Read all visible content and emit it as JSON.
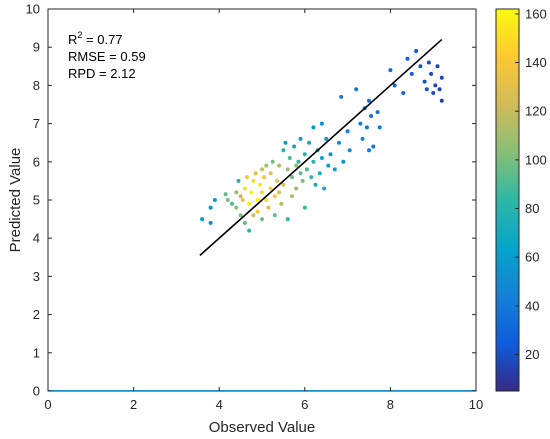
{
  "chart_data": {
    "type": "scatter",
    "xlabel": "Observed Value",
    "ylabel": "Predicted Value",
    "xlim": [
      0,
      10
    ],
    "ylim": [
      0,
      10
    ],
    "x_ticks": [
      "0",
      "2",
      "4",
      "6",
      "8",
      "10"
    ],
    "y_ticks": [
      "0",
      "1",
      "2",
      "3",
      "4",
      "5",
      "6",
      "7",
      "8",
      "9",
      "10"
    ],
    "grid": false,
    "annotations": {
      "r2_label": "R",
      "r2_sup": "2",
      "r2_value": " = 0.77",
      "rmse": "RMSE = 0.59",
      "rpd": "RPD = 2.12"
    },
    "fit_line": {
      "x": [
        3.55,
        9.2
      ],
      "y": [
        3.55,
        9.2
      ],
      "color": "#000000"
    },
    "colorbar": {
      "range": [
        5,
        162
      ],
      "ticks": [
        "20",
        "40",
        "60",
        "80",
        "100",
        "120",
        "140",
        "160"
      ],
      "colormap": "parula",
      "stops": [
        "#352a87",
        "#0f5cdd",
        "#1481d6",
        "#06a4ca",
        "#2eb7a4",
        "#87bf77",
        "#d1bb59",
        "#fec832",
        "#f9fb0e"
      ]
    },
    "points": [
      [
        3.6,
        4.5,
        60
      ],
      [
        3.8,
        4.8,
        55
      ],
      [
        3.9,
        5.0,
        60
      ],
      [
        3.8,
        4.4,
        50
      ],
      [
        4.2,
        5.0,
        100
      ],
      [
        4.15,
        5.15,
        95
      ],
      [
        4.3,
        4.9,
        90
      ],
      [
        4.4,
        5.2,
        110
      ],
      [
        4.4,
        4.8,
        105
      ],
      [
        4.45,
        5.5,
        80
      ],
      [
        4.5,
        5.1,
        120
      ],
      [
        4.5,
        4.6,
        100
      ],
      [
        4.55,
        5.0,
        135
      ],
      [
        4.6,
        5.3,
        150
      ],
      [
        4.6,
        4.4,
        95
      ],
      [
        4.65,
        5.6,
        140
      ],
      [
        4.7,
        4.9,
        155
      ],
      [
        4.7,
        4.2,
        80
      ],
      [
        4.75,
        5.2,
        160
      ],
      [
        4.8,
        5.5,
        150
      ],
      [
        4.8,
        4.6,
        120
      ],
      [
        4.85,
        5.7,
        130
      ],
      [
        4.9,
        5.0,
        158
      ],
      [
        4.9,
        4.7,
        140
      ],
      [
        4.95,
        5.4,
        155
      ],
      [
        5.0,
        5.8,
        120
      ],
      [
        5.0,
        5.2,
        150
      ],
      [
        5.0,
        4.5,
        100
      ],
      [
        5.05,
        5.6,
        140
      ],
      [
        5.1,
        5.0,
        150
      ],
      [
        5.1,
        5.9,
        110
      ],
      [
        5.15,
        4.8,
        130
      ],
      [
        5.2,
        5.3,
        145
      ],
      [
        5.2,
        5.7,
        130
      ],
      [
        5.25,
        6.0,
        100
      ],
      [
        5.3,
        5.1,
        140
      ],
      [
        5.3,
        4.6,
        95
      ],
      [
        5.35,
        5.5,
        135
      ],
      [
        5.4,
        5.9,
        110
      ],
      [
        5.4,
        5.2,
        125
      ],
      [
        5.45,
        4.9,
        115
      ],
      [
        5.5,
        5.4,
        130
      ],
      [
        5.5,
        6.3,
        80
      ],
      [
        5.55,
        6.5,
        60
      ],
      [
        5.6,
        5.8,
        110
      ],
      [
        5.6,
        4.5,
        85
      ],
      [
        5.65,
        6.1,
        90
      ],
      [
        5.7,
        5.6,
        100
      ],
      [
        5.7,
        5.1,
        115
      ],
      [
        5.75,
        6.4,
        70
      ],
      [
        5.8,
        5.9,
        105
      ],
      [
        5.8,
        5.3,
        110
      ],
      [
        5.85,
        6.0,
        80
      ],
      [
        5.9,
        5.7,
        95
      ],
      [
        5.9,
        6.6,
        60
      ],
      [
        5.95,
        5.5,
        100
      ],
      [
        6.0,
        6.2,
        80
      ],
      [
        6.0,
        4.8,
        85
      ],
      [
        6.05,
        5.8,
        90
      ],
      [
        6.1,
        6.5,
        70
      ],
      [
        6.15,
        5.6,
        85
      ],
      [
        6.2,
        6.0,
        80
      ],
      [
        6.2,
        6.9,
        55
      ],
      [
        6.25,
        5.4,
        75
      ],
      [
        6.3,
        6.3,
        70
      ],
      [
        6.35,
        5.7,
        75
      ],
      [
        6.4,
        6.1,
        65
      ],
      [
        6.4,
        7.0,
        50
      ],
      [
        6.45,
        5.3,
        70
      ],
      [
        6.5,
        6.6,
        60
      ],
      [
        6.55,
        5.9,
        60
      ],
      [
        6.6,
        6.2,
        55
      ],
      [
        6.7,
        5.8,
        60
      ],
      [
        6.8,
        6.5,
        50
      ],
      [
        6.85,
        7.7,
        40
      ],
      [
        6.9,
        6.0,
        55
      ],
      [
        7.0,
        6.8,
        45
      ],
      [
        7.05,
        6.3,
        50
      ],
      [
        7.2,
        7.9,
        40
      ],
      [
        7.3,
        7.0,
        42
      ],
      [
        7.35,
        6.6,
        45
      ],
      [
        7.4,
        7.4,
        40
      ],
      [
        7.45,
        6.9,
        38
      ],
      [
        7.5,
        7.6,
        36
      ],
      [
        7.5,
        6.3,
        40
      ],
      [
        7.55,
        7.2,
        38
      ],
      [
        7.6,
        6.4,
        38
      ],
      [
        7.7,
        7.3,
        35
      ],
      [
        7.75,
        6.9,
        35
      ],
      [
        8.0,
        8.4,
        30
      ],
      [
        8.1,
        8.0,
        30
      ],
      [
        8.3,
        7.8,
        28
      ],
      [
        8.4,
        8.7,
        25
      ],
      [
        8.5,
        8.3,
        25
      ],
      [
        8.6,
        8.9,
        22
      ],
      [
        8.7,
        8.5,
        22
      ],
      [
        8.8,
        8.1,
        20
      ],
      [
        8.85,
        7.9,
        20
      ],
      [
        8.9,
        8.6,
        18
      ],
      [
        8.95,
        8.3,
        18
      ],
      [
        9.0,
        7.8,
        18
      ],
      [
        9.05,
        8.0,
        16
      ],
      [
        9.1,
        8.5,
        16
      ],
      [
        9.15,
        7.9,
        15
      ],
      [
        9.2,
        7.6,
        15
      ],
      [
        9.2,
        8.2,
        15
      ]
    ]
  }
}
